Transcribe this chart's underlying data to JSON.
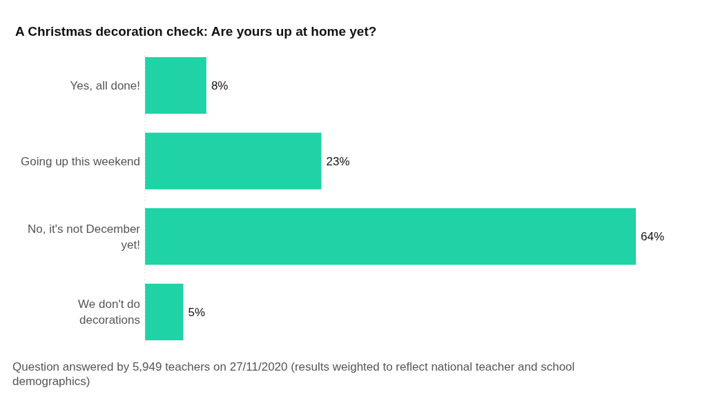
{
  "chart_data": {
    "type": "bar",
    "orientation": "horizontal",
    "title": "A Christmas decoration check: Are yours up at home yet?",
    "categories": [
      "Yes, all done!",
      "Going up this weekend",
      "No, it's not December yet!",
      "We don't do decorations"
    ],
    "values": [
      8,
      23,
      64,
      5
    ],
    "value_labels": [
      "8%",
      "23%",
      "64%",
      "5%"
    ],
    "color": "#1fd3a6",
    "annotations": [
      "Question answered by 5,949 teachers on 27/11/2020 (results weighted to reflect national teacher and school demographics)"
    ]
  }
}
